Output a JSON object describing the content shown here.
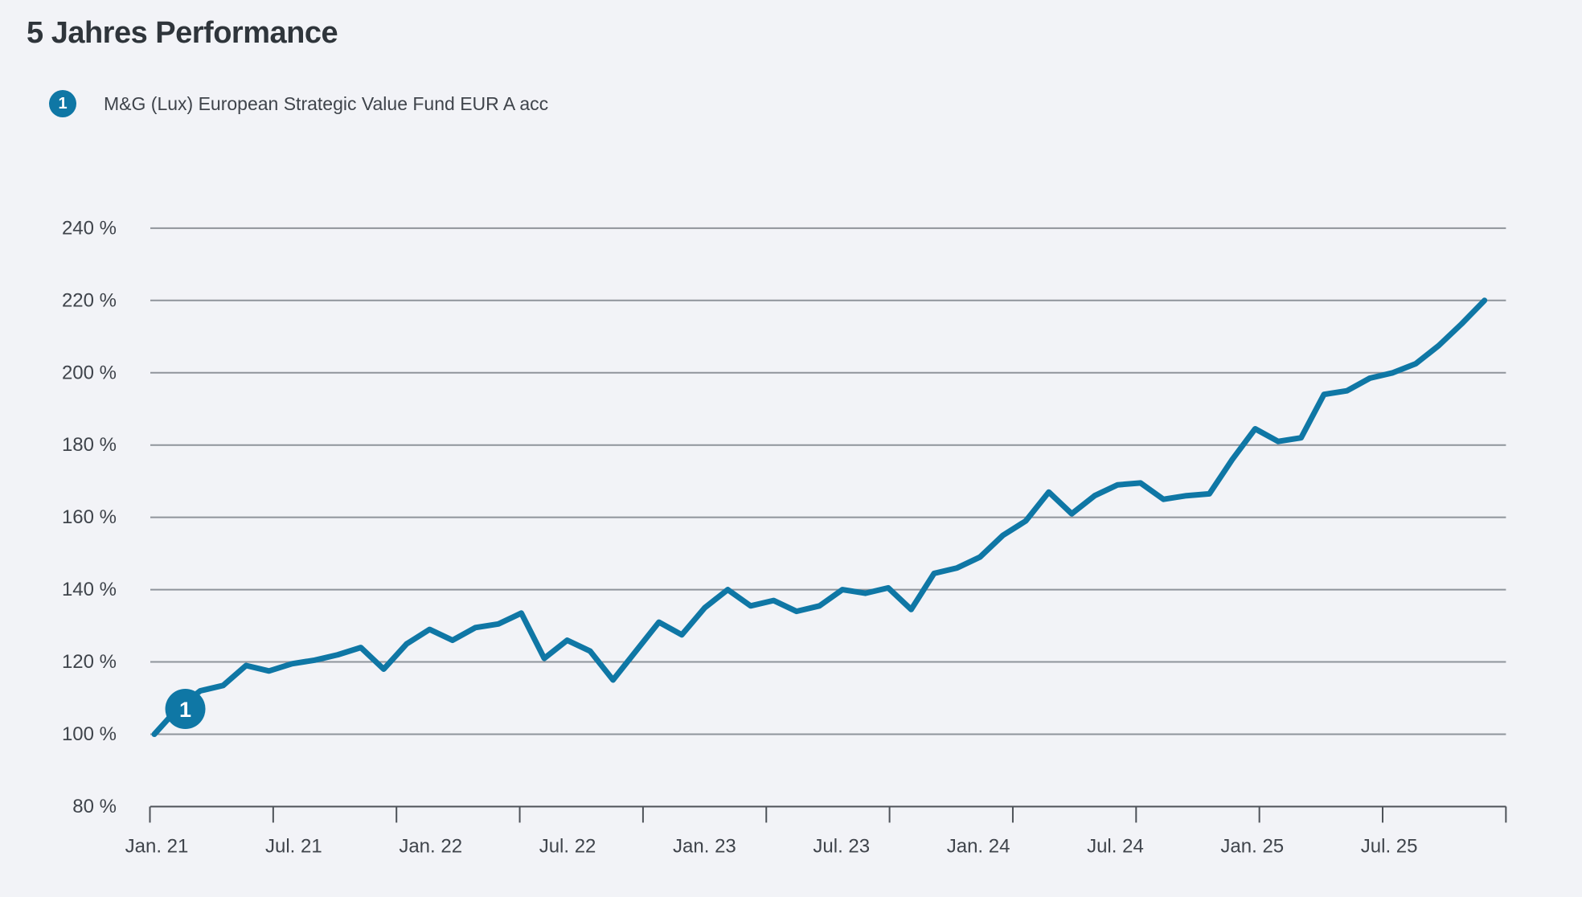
{
  "colors": {
    "background": "#f2f3f7",
    "line": "#0f77a5",
    "badge": "#0f77a5",
    "badge_text": "#ffffff",
    "gridline": "#8f949b",
    "axis": "#4d5258",
    "title_text": "#2f353b",
    "label_text": "#3f444b"
  },
  "chart_data": {
    "type": "line",
    "title": "5 Jahres Performance",
    "grid": true,
    "legend_position": "top-left",
    "x_axis": {
      "frequency": "monthly",
      "start_label": "Jan. 21",
      "tick_labels": [
        "Jan. 21",
        "Jul. 21",
        "Jan. 22",
        "Jul. 22",
        "Jan. 23",
        "Jul. 23",
        "Jan. 24",
        "Jul. 24",
        "Jan. 25",
        "Jul. 25"
      ]
    },
    "y_axis": {
      "unit": "%",
      "range": [
        80,
        250
      ],
      "ticks": [
        {
          "value": 240,
          "label": "240 %"
        },
        {
          "value": 220,
          "label": "220 %"
        },
        {
          "value": 200,
          "label": "200 %"
        },
        {
          "value": 180,
          "label": "180 %"
        },
        {
          "value": 160,
          "label": "160 %"
        },
        {
          "value": 140,
          "label": "140 %"
        },
        {
          "value": 120,
          "label": "120 %"
        },
        {
          "value": 100,
          "label": "100 %"
        },
        {
          "value": 80,
          "label": "80 %"
        }
      ]
    },
    "series": [
      {
        "name": "M&G (Lux) European Strategic Value Fund EUR A acc",
        "marker": "1",
        "marker_point_index": 1,
        "values": [
          100,
          107,
          112,
          113.5,
          119,
          117.5,
          119.5,
          120.5,
          122,
          124,
          118,
          125,
          129,
          126,
          129.5,
          130.5,
          133.5,
          121,
          126,
          123,
          115,
          123,
          131,
          127.5,
          135,
          140,
          135.5,
          137,
          134,
          135.5,
          140,
          139,
          140.5,
          134.5,
          144.5,
          146,
          149,
          155,
          159,
          167,
          161,
          166,
          169,
          169.5,
          165,
          166,
          166.5,
          176,
          184.5,
          181,
          182,
          194,
          195,
          198.5,
          200,
          202.5,
          207.5,
          213.5,
          220
        ]
      }
    ]
  }
}
